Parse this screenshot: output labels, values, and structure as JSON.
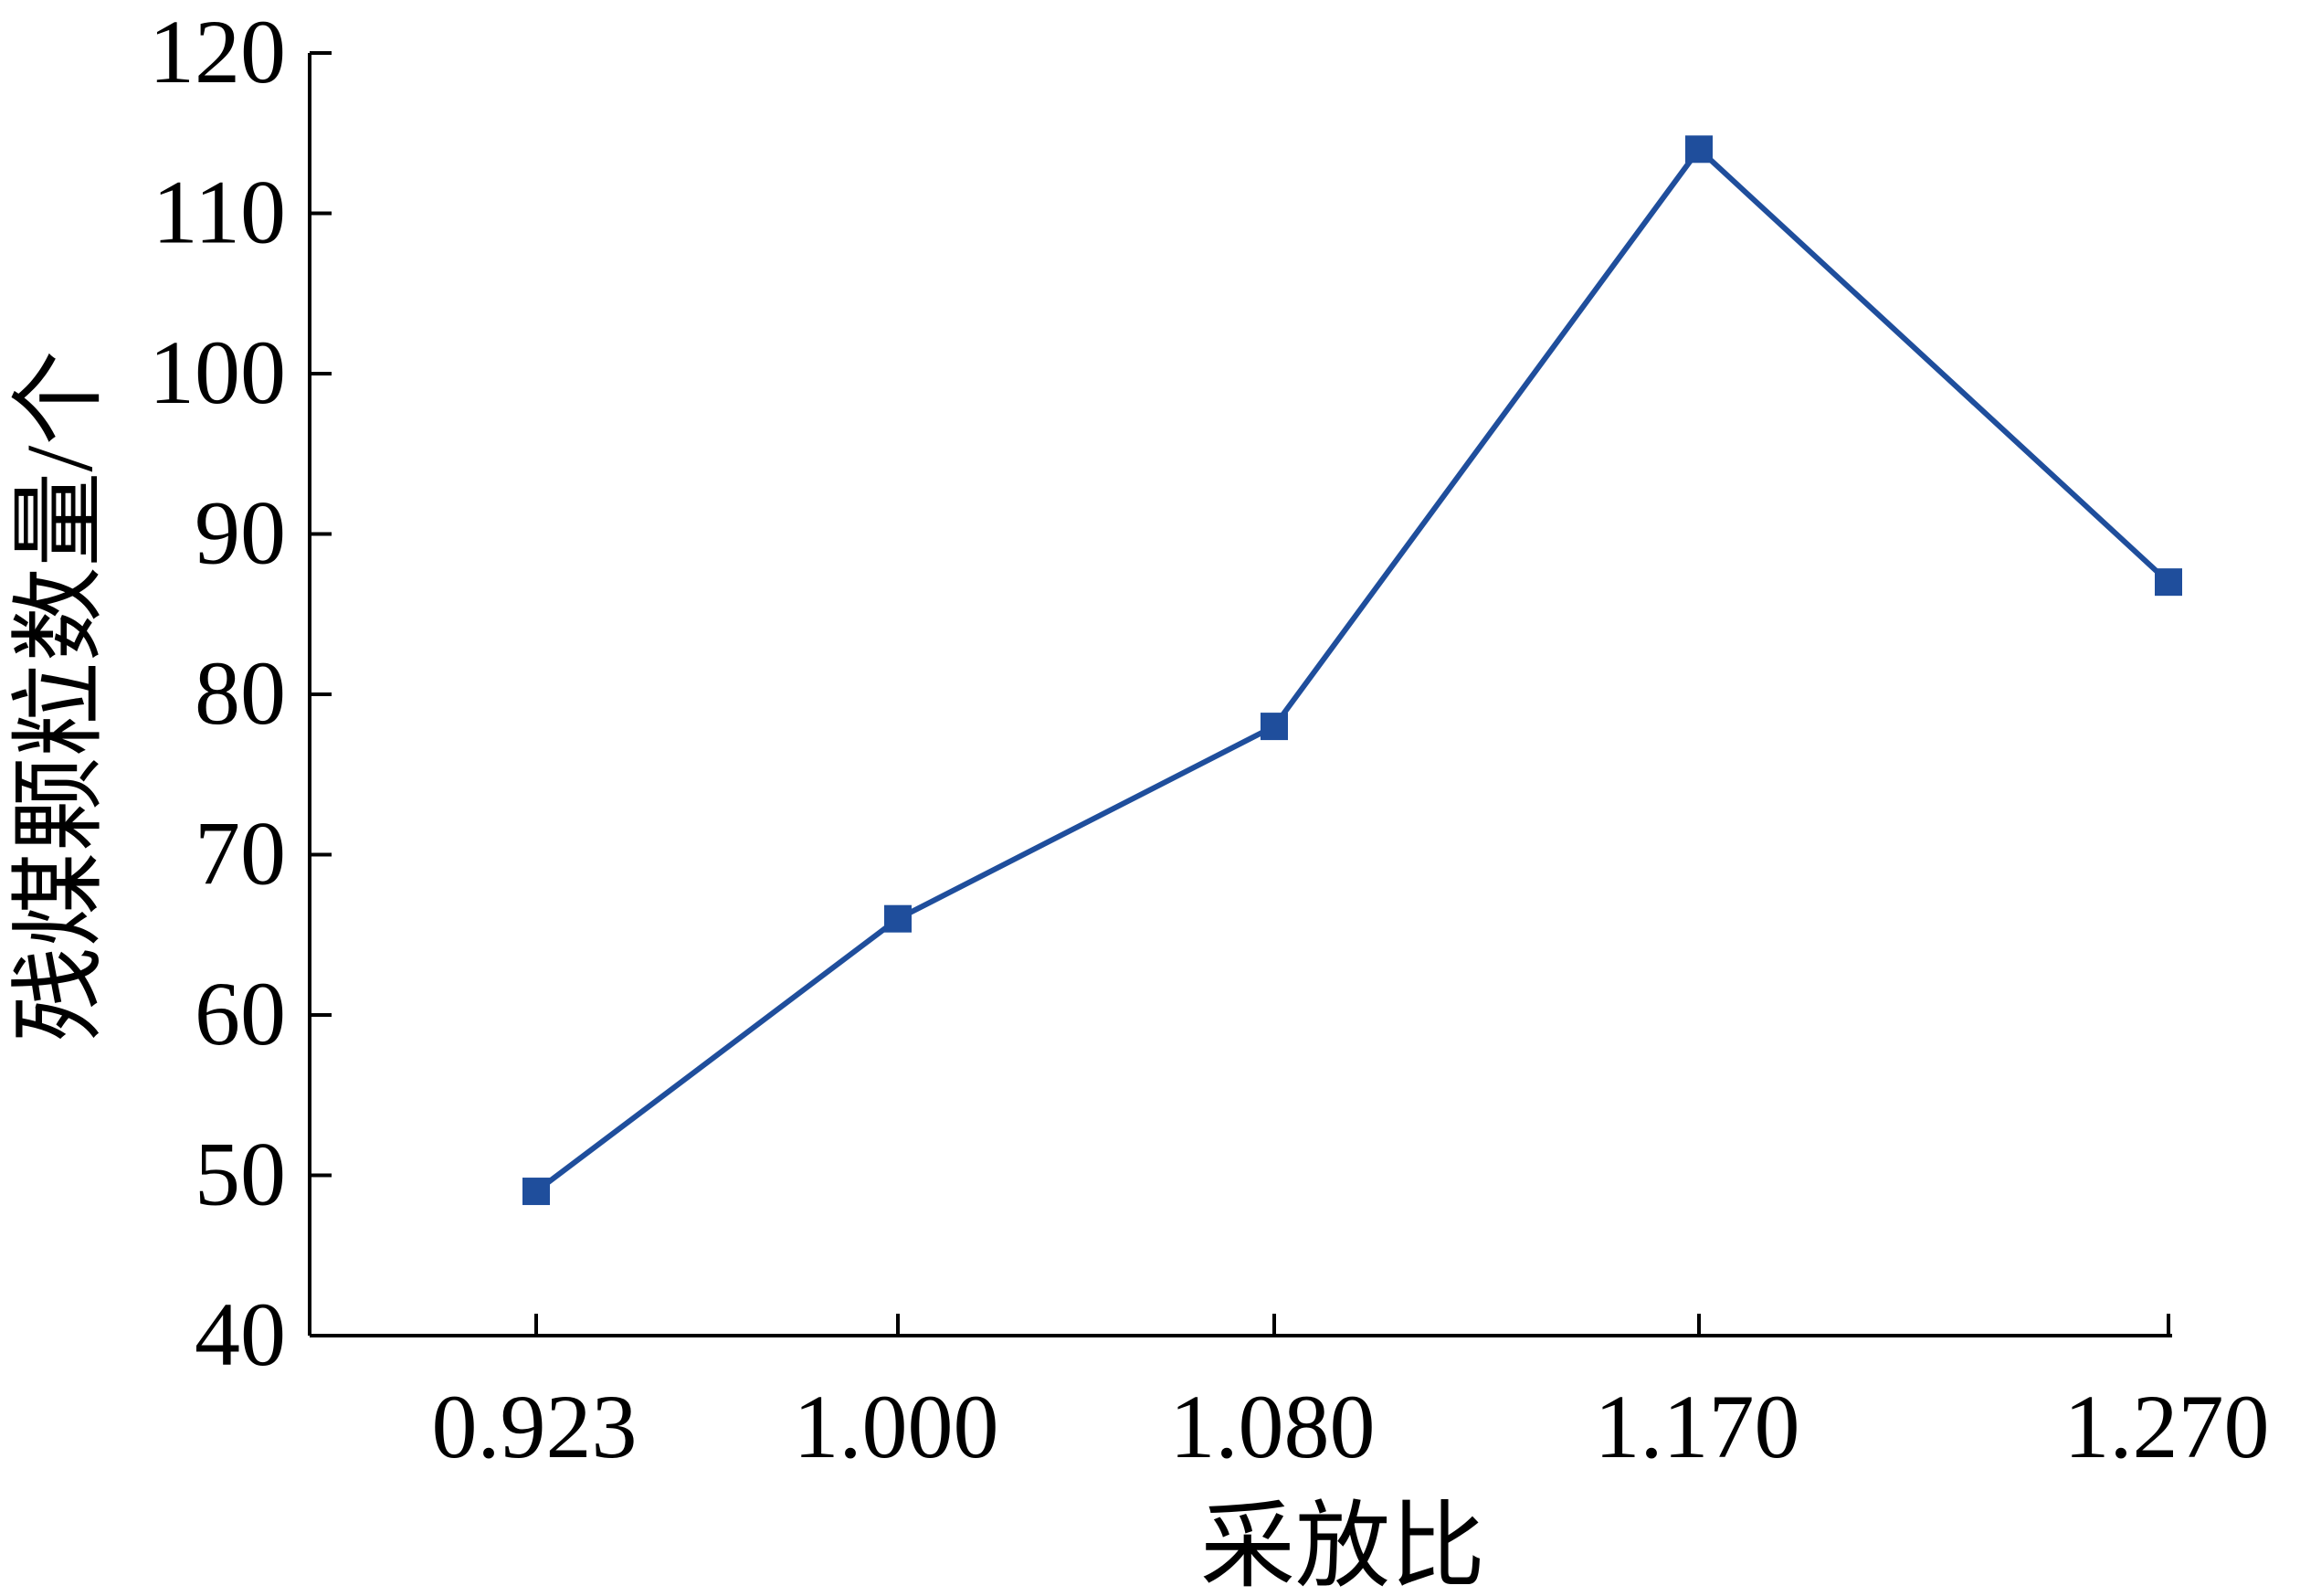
{
  "chart_data": {
    "type": "line",
    "title": "",
    "xlabel": "采放比",
    "ylabel": "残煤颗粒数量/个",
    "categories": [
      "0.923",
      "1.000",
      "1.080",
      "1.170",
      "1.270"
    ],
    "x": [
      0.923,
      1.0,
      1.08,
      1.17,
      1.27
    ],
    "series": [
      {
        "name": "",
        "values": [
          49,
          66,
          78,
          114,
          87
        ]
      }
    ],
    "ylim": [
      40,
      120
    ],
    "yticks": [
      40,
      50,
      60,
      70,
      80,
      90,
      100,
      110,
      120
    ],
    "grid": false,
    "legend": "none",
    "line_color": "#1f4e9c",
    "marker_color": "#1f4e9c",
    "marker": "square"
  }
}
